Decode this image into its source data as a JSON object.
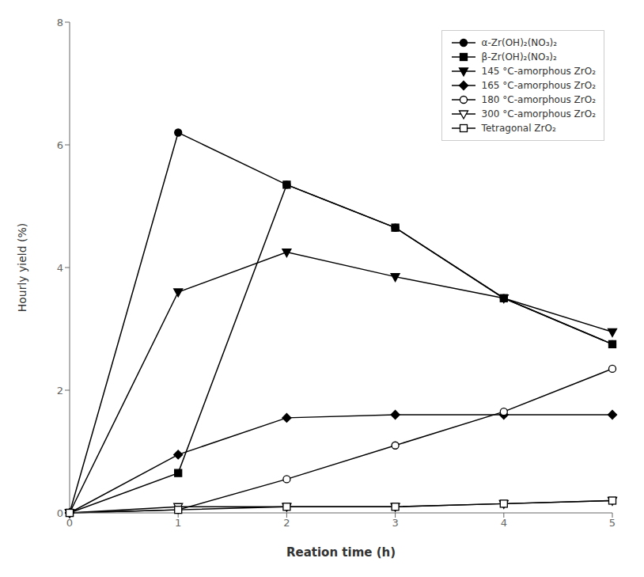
{
  "chart_data": {
    "type": "line",
    "x": [
      0,
      1,
      2,
      3,
      4,
      5
    ],
    "series": [
      {
        "name": "α-Zr(OH)₂(NO₃)₂",
        "values": [
          0,
          6.2,
          5.35,
          4.65,
          3.5,
          2.75
        ],
        "marker": "circle"
      },
      {
        "name": "β-Zr(OH)₂(NO₃)₂",
        "values": [
          0,
          0.65,
          5.35,
          4.65,
          3.5,
          2.75
        ],
        "marker": "square"
      },
      {
        "name": "145 °C-amorphous ZrO₂",
        "values": [
          0,
          3.6,
          4.25,
          3.85,
          3.5,
          2.95
        ],
        "marker": "triangle-down"
      },
      {
        "name": "165 °C-amorphous ZrO₂",
        "values": [
          0,
          0.95,
          1.55,
          1.6,
          1.6,
          1.6
        ],
        "marker": "diamond"
      },
      {
        "name": "180 °C-amorphous ZrO₂",
        "values": [
          0,
          0.05,
          0.55,
          1.1,
          1.65,
          2.35
        ],
        "marker": "circle-open"
      },
      {
        "name": "300 °C-amorphous ZrO₂",
        "values": [
          0,
          0.1,
          0.1,
          0.1,
          0.15,
          0.2
        ],
        "marker": "triangle-down-open"
      },
      {
        "name": "Tetragonal ZrO₂",
        "values": [
          0,
          0.05,
          0.1,
          0.1,
          0.15,
          0.2
        ],
        "marker": "square-open"
      }
    ],
    "color": "#000000",
    "xlabel": "Reation time (h)",
    "ylabel": "Hourly yield (%)",
    "xlim": [
      0,
      5
    ],
    "ylim": [
      0,
      8
    ],
    "xticks": [
      0,
      1,
      2,
      3,
      4,
      5
    ],
    "yticks": [
      0,
      2,
      4,
      6,
      8
    ],
    "grid": false,
    "legend": "upper right"
  }
}
